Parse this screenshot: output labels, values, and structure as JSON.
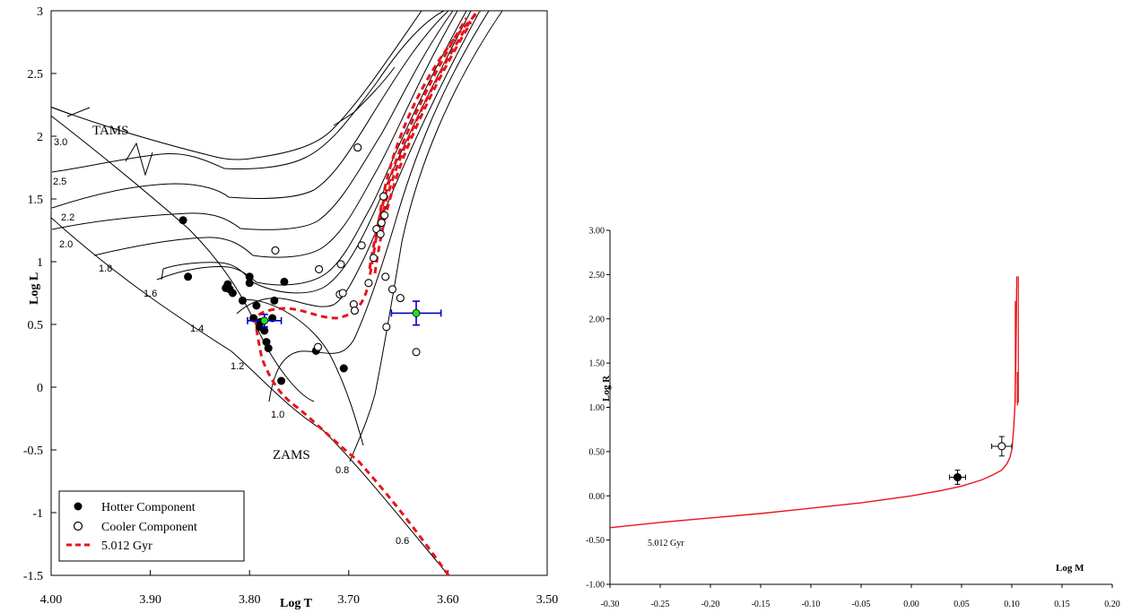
{
  "chart_data": [
    {
      "type": "scatter",
      "xlabel": "Log T",
      "ylabel": "Log L",
      "xlim": [
        4.0,
        3.5
      ],
      "ylim": [
        -1.5,
        3.0
      ],
      "x_ticks": [
        "4.00",
        "3.90",
        "3.80",
        "3.70",
        "3.60",
        "3.50"
      ],
      "y_ticks": [
        "-1.5",
        "-1",
        "-0.5",
        "0",
        "0.5",
        "1",
        "1.5",
        "2",
        "2.5",
        "3"
      ],
      "annotations": {
        "tams": "TAMS",
        "zams": "ZAMS"
      },
      "track_masses": [
        "3.0",
        "2.5",
        "2.2",
        "2.0",
        "1.8",
        "1.6",
        "1.4",
        "1.2",
        "1.0",
        "0.8",
        "0.6"
      ],
      "legend": {
        "position": "bottom-left",
        "hotter": "Hotter Component",
        "cooler": "Cooler Component",
        "isochrone": "5.012 Gyr"
      },
      "hotter": {
        "x": [
          3.867,
          3.862,
          3.822,
          3.82,
          3.817,
          3.824,
          3.807,
          3.8,
          3.8,
          3.793,
          3.796,
          3.79,
          3.789,
          3.785,
          3.783,
          3.781,
          3.777,
          3.775,
          3.768,
          3.765,
          3.733,
          3.705
        ],
        "y": [
          1.33,
          0.88,
          0.82,
          0.78,
          0.75,
          0.79,
          0.69,
          0.88,
          0.83,
          0.65,
          0.55,
          0.48,
          0.52,
          0.45,
          0.36,
          0.31,
          0.55,
          0.69,
          0.05,
          0.84,
          0.29,
          0.15
        ]
      },
      "cooler": {
        "x": [
          3.691,
          3.774,
          3.73,
          3.709,
          3.708,
          3.706,
          3.695,
          3.694,
          3.687,
          3.68,
          3.675,
          3.672,
          3.668,
          3.667,
          3.665,
          3.663,
          3.662,
          3.656,
          3.648,
          3.664,
          3.731,
          3.632
        ],
        "y": [
          1.91,
          1.09,
          0.94,
          0.74,
          0.98,
          0.75,
          0.66,
          0.61,
          1.13,
          0.83,
          1.03,
          1.26,
          1.22,
          1.31,
          1.52,
          0.88,
          0.48,
          0.78,
          0.71,
          1.37,
          0.32,
          0.28
        ]
      },
      "highlighted": [
        {
          "x": 3.785,
          "y": 0.53,
          "x_err": 0.017,
          "y_err": 0.05,
          "fill": "open"
        },
        {
          "x": 3.632,
          "y": 0.59,
          "x_err": 0.025,
          "y_err": 0.095,
          "fill": "open"
        }
      ],
      "colors": {
        "isochrone": "#e8141b",
        "error_bars": "#0000cc",
        "highlight": "#1fe31f",
        "tracks": "#000000"
      }
    },
    {
      "type": "line",
      "xlabel": "Log M",
      "ylabel": "Log R",
      "xlim": [
        -0.3,
        0.2
      ],
      "ylim": [
        -1.0,
        3.0
      ],
      "x_ticks": [
        "-0.30",
        "-0.25",
        "-0.20",
        "-0.15",
        "-0.10",
        "-0.05",
        "0.00",
        "0.05",
        "0.10",
        "0.15",
        "0.20"
      ],
      "y_ticks": [
        "-1.00",
        "-0.50",
        "0.00",
        "0.50",
        "1.00",
        "1.50",
        "2.00",
        "2.50",
        "3.00"
      ],
      "series_label": "5.012 Gyr",
      "isochrone": {
        "x": [
          -0.3,
          -0.25,
          -0.2,
          -0.15,
          -0.1,
          -0.05,
          0.0,
          0.03,
          0.05,
          0.07,
          0.08,
          0.09,
          0.095,
          0.098,
          0.1,
          0.101,
          0.102,
          0.103,
          0.104,
          0.105
        ],
        "y": [
          -0.36,
          -0.3,
          -0.25,
          -0.2,
          -0.14,
          -0.08,
          0.0,
          0.06,
          0.11,
          0.18,
          0.23,
          0.29,
          0.36,
          0.43,
          0.52,
          0.63,
          0.78,
          1.0,
          1.5,
          2.48
        ]
      },
      "points": [
        {
          "name": "hotter",
          "x": 0.046,
          "y": 0.21,
          "x_err": 0.008,
          "y_err": 0.08,
          "fill": "filled"
        },
        {
          "name": "cooler",
          "x": 0.09,
          "y": 0.56,
          "x_err": 0.01,
          "y_err": 0.11,
          "fill": "open"
        }
      ],
      "colors": {
        "isochrone": "#e8141b"
      }
    }
  ]
}
